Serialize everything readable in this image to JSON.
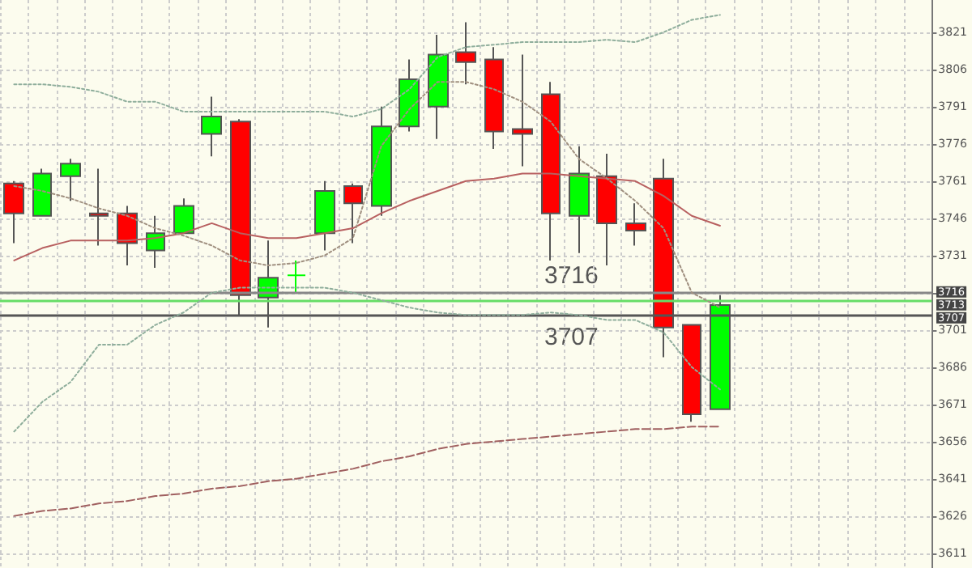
{
  "chart_data": {
    "type": "candlestick",
    "categories": [
      null,
      null,
      null,
      null,
      null,
      null,
      null,
      null,
      null,
      null,
      null,
      null,
      null,
      null,
      null,
      null,
      null,
      null,
      null,
      null,
      null,
      null,
      null,
      null,
      null,
      null,
      null,
      null,
      null,
      null,
      null,
      null,
      null
    ],
    "ohlc": [
      [
        3760,
        3761,
        3736,
        3748
      ],
      [
        3747,
        3766,
        3747,
        3764
      ],
      [
        3763,
        3770,
        3753,
        3768
      ],
      [
        3748,
        3766,
        3735,
        3747
      ],
      [
        3748,
        3751,
        3727,
        3736
      ],
      [
        3733,
        3747,
        3726,
        3740
      ],
      [
        3740,
        3754,
        3740,
        3751
      ],
      [
        3780,
        3795,
        3771,
        3787
      ],
      [
        3785,
        3786,
        3707,
        3715
      ],
      [
        3714,
        3737,
        3702,
        3722
      ],
      [
        3723,
        3729,
        3716,
        3723
      ],
      [
        3740,
        3761,
        3733,
        3757
      ],
      [
        3759,
        3760,
        3736,
        3752
      ],
      [
        3751,
        3791,
        3747,
        3783
      ],
      [
        3783,
        3810,
        3781,
        3802
      ],
      [
        3791,
        3820,
        3778,
        3812
      ],
      [
        3813,
        3825,
        3800,
        3809
      ],
      [
        3810,
        3815,
        3774,
        3781
      ],
      [
        3782,
        3812,
        3767,
        3780
      ],
      [
        3796,
        3801,
        3729,
        3748
      ],
      [
        3747,
        3775,
        3732,
        3764
      ],
      [
        3763,
        3772,
        3727,
        3744
      ],
      [
        3744,
        3752,
        3735,
        3741
      ],
      [
        3762,
        3770,
        3690,
        3702
      ],
      [
        3703,
        3703,
        3664,
        3667
      ],
      [
        3669,
        3715,
        3669,
        3711
      ],
      null,
      null,
      null,
      null,
      null,
      null,
      null
    ],
    "colors": [
      "#ff0000",
      "#00ff00",
      "#00ff00",
      "#ff0000",
      "#ff0000",
      "#00ff00",
      "#00ff00",
      "#00ff00",
      "#ff0000",
      "#00ff00",
      "#00ff00",
      "#00ff00",
      "#ff0000",
      "#00ff00",
      "#00ff00",
      "#00ff00",
      "#ff0000",
      "#ff0000",
      "#ff0000",
      "#ff0000",
      "#00ff00",
      "#ff0000",
      "#ff0000",
      "#ff0000",
      "#ff0000",
      "#00ff00",
      null,
      null,
      null,
      null,
      null,
      null,
      null
    ],
    "series": [
      {
        "type": "line",
        "color": "#8fae9c",
        "line_style": "dotted",
        "values": [
          3800,
          3800,
          3799,
          3797,
          3793,
          3793,
          3789,
          3789,
          3789,
          3789,
          3789,
          3789,
          3787,
          3790,
          3798,
          3811,
          3815,
          3816,
          3817,
          3817,
          3817,
          3818,
          3817,
          3821,
          3826,
          3828,
          null,
          null,
          null,
          null,
          null,
          null,
          null
        ]
      },
      {
        "type": "line",
        "color": "#8fae9c",
        "line_style": "dotted",
        "values": [
          3660,
          3672,
          3680,
          3695,
          3695,
          3703,
          3708,
          3716,
          3718,
          3718,
          3718,
          3718,
          3716,
          3713,
          3710,
          3708,
          3707,
          3707,
          3707,
          3708,
          3707,
          3705,
          3705,
          3700,
          3686,
          3677,
          null,
          null,
          null,
          null,
          null,
          null,
          null
        ]
      },
      {
        "type": "line",
        "color": "#b86060",
        "line_style": "solid",
        "values": [
          3729,
          3734,
          3737,
          3737,
          3737,
          3738,
          3740,
          3744,
          3740,
          3738,
          3738,
          3740,
          3742,
          3748,
          3753,
          3757,
          3761,
          3762,
          3764,
          3764,
          3763,
          3762,
          3761,
          3755,
          3747,
          3743,
          null,
          null,
          null,
          null,
          null,
          null,
          null
        ]
      },
      {
        "type": "line",
        "color": "#a09080",
        "line_style": "dotted",
        "values": [
          3759,
          3757,
          3754,
          3750,
          3747,
          3742,
          3739,
          3735,
          3729,
          3727,
          3728,
          3731,
          3738,
          3775,
          3790,
          3801,
          3801,
          3798,
          3793,
          3785,
          3770,
          3762,
          3753,
          3742,
          3716,
          3710,
          null,
          null,
          null,
          null,
          null,
          null,
          null
        ]
      },
      {
        "type": "line",
        "color": "#a06060",
        "line_style": "dashed",
        "values": [
          3626,
          3628,
          3629,
          3631,
          3632,
          3634,
          3635,
          3637,
          3638,
          3640,
          3641,
          3643,
          3645,
          3648,
          3650,
          3653,
          3655,
          3656,
          3657,
          3658,
          3659,
          3660,
          3661,
          3661,
          3662,
          3662,
          null,
          null,
          null,
          null,
          null,
          null,
          null
        ]
      }
    ],
    "ylim": [
      3605,
      3834
    ],
    "yticks": [
      3611,
      3626,
      3641,
      3656,
      3671,
      3686,
      3701,
      {
        "value": 3716,
        "label": null
      },
      3731,
      3746,
      3761,
      3776,
      3791,
      3806,
      3821
    ],
    "tick_labels": "y",
    "grid": true,
    "marker": "none",
    "ref_lines": [
      {
        "axis": "y",
        "value": 3716,
        "label": "3716",
        "color": "#888888"
      },
      {
        "axis": "y",
        "value": 3713,
        "label": "3713",
        "color": "#66dd66"
      },
      {
        "axis": "y",
        "value": 3707,
        "label": "3707",
        "color": "#555555"
      }
    ],
    "annotations": [
      "3716",
      "3707"
    ]
  }
}
